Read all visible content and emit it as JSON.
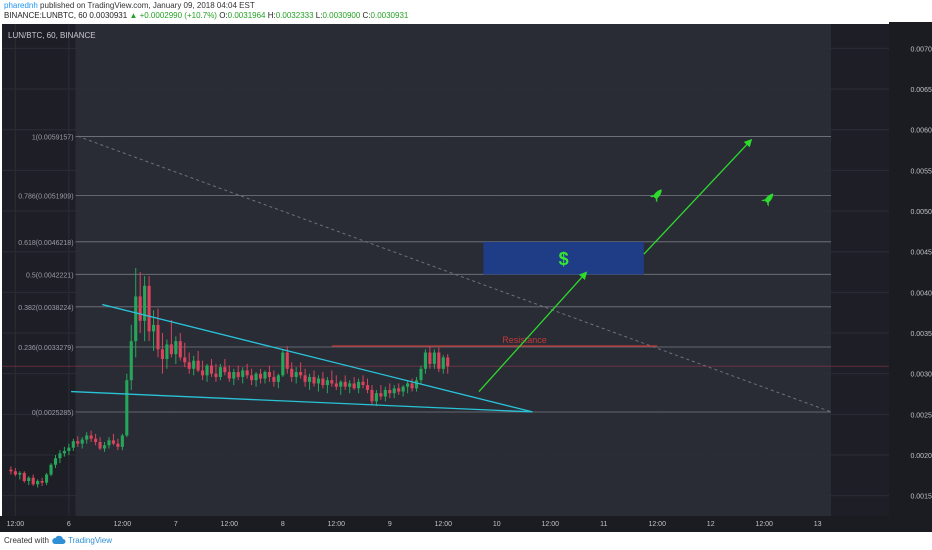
{
  "header": {
    "username": "pharednh",
    "published_text": "published on TradingView.com, January 09, 2018 04:04 EST",
    "symbol_line": "BINANCE:LUNBTC, 60",
    "last": "0.0030931",
    "change": "+0.0002990 (+10.7%)",
    "open_label": "O:",
    "open": "0.0031964",
    "high_label": "H:",
    "high": "0.0032333",
    "low_label": "L:",
    "low": "0.0030900",
    "close_label": "C:",
    "close": "0.0030931"
  },
  "footer": {
    "created_with": "Created with",
    "brand": "TradingView"
  },
  "colors": {
    "background": "#1e1f26",
    "shaded_region": "#2a2c35",
    "grid": "#2b2d36",
    "up_candle": "#26a65b",
    "down_candle": "#d9435d",
    "trendline": "#28c3d6",
    "arrow": "#2ddb2d",
    "resistance": "#c23838",
    "fib_line": "#8a8c96",
    "target_box": "#1e3f8f",
    "dollar": "#35e635",
    "rocket": "#2ddb2d"
  },
  "chart_data": {
    "type": "candlestick",
    "title": "LUN/BTC, 60, BINANCE",
    "x_ticks": [
      "12:00",
      "6",
      "12:00",
      "7",
      "12:00",
      "8",
      "12:00",
      "9",
      "12:00",
      "10",
      "12:00",
      "11",
      "12:00",
      "12",
      "12:00",
      "13"
    ],
    "x_tick_hours": [
      0,
      12,
      24,
      36,
      48,
      60,
      72,
      84,
      96,
      108,
      120,
      132,
      144,
      156,
      168,
      180
    ],
    "y_ticks": [
      "0.0070000",
      "0.0065000",
      "0.0060000",
      "0.0055000",
      "0.0050000",
      "0.0045000",
      "0.0040000",
      "0.0035000",
      "0.0030000",
      "0.0025000",
      "0.0020000",
      "0.0015000"
    ],
    "ylim": [
      0.00125,
      0.0073
    ],
    "xlim": [
      -3,
      196
    ],
    "last_price": 0.0030931,
    "fibonacci": [
      {
        "label": "1(0.0059157)",
        "price": 0.0059157
      },
      {
        "label": "0.786(0.0051909)",
        "price": 0.0051909
      },
      {
        "label": "0.618(0.0046218)",
        "price": 0.0046218
      },
      {
        "label": "0.5(0.0042221)",
        "price": 0.0042221
      },
      {
        "label": "0.382(0.0038224)",
        "price": 0.0038224
      },
      {
        "label": "0.236(0.0033279)",
        "price": 0.0033279
      },
      {
        "label": "0(0.0025285)",
        "price": 0.0025285
      }
    ],
    "fib_hours": [
      13.5,
      183
    ],
    "shaded_hours": [
      13.5,
      183
    ],
    "diagonal": {
      "from": [
        14,
        0.00592
      ],
      "to": [
        183,
        0.00253
      ]
    },
    "resistance": {
      "label": "Resistance",
      "price": 0.00334,
      "hours": [
        71,
        144
      ]
    },
    "trend_upper": {
      "from": [
        19.5,
        0.00385
      ],
      "to": [
        116,
        0.00253
      ]
    },
    "trend_lower": {
      "from": [
        12.5,
        0.00278
      ],
      "to": [
        116,
        0.00253
      ]
    },
    "arrow_1": {
      "from": [
        104,
        0.00278
      ],
      "to": [
        128,
        0.00424
      ]
    },
    "arrow_2": {
      "from": [
        141,
        0.00447
      ],
      "to": [
        165,
        0.00587
      ]
    },
    "target_box": {
      "label": "$",
      "hours": [
        105,
        141
      ],
      "prices": [
        0.00422,
        0.00462
      ]
    },
    "rockets": [
      {
        "hour": 144,
        "price": 0.0052
      },
      {
        "hour": 169,
        "price": 0.00515
      }
    ],
    "candles": [
      [
        -1,
        0.00182,
        0.00186,
        0.00176,
        0.0018
      ],
      [
        0,
        0.0018,
        0.00184,
        0.00174,
        0.00176
      ],
      [
        1,
        0.00176,
        0.0018,
        0.0017,
        0.00178
      ],
      [
        2,
        0.00178,
        0.0018,
        0.00166,
        0.00168
      ],
      [
        3,
        0.00168,
        0.00174,
        0.00163,
        0.00172
      ],
      [
        4,
        0.00172,
        0.00176,
        0.00162,
        0.00164
      ],
      [
        5,
        0.00164,
        0.0017,
        0.0016,
        0.00168
      ],
      [
        6,
        0.00168,
        0.00172,
        0.00162,
        0.00166
      ],
      [
        7,
        0.00166,
        0.00178,
        0.00163,
        0.00176
      ],
      [
        8,
        0.00176,
        0.0019,
        0.00174,
        0.00188
      ],
      [
        9,
        0.00188,
        0.002,
        0.00184,
        0.00196
      ],
      [
        10,
        0.00196,
        0.00206,
        0.0019,
        0.00202
      ],
      [
        11,
        0.00202,
        0.0021,
        0.00198,
        0.00205
      ],
      [
        12,
        0.00205,
        0.00214,
        0.002,
        0.00209
      ],
      [
        13,
        0.00209,
        0.0022,
        0.00205,
        0.00217
      ],
      [
        14,
        0.00217,
        0.00223,
        0.0021,
        0.00214
      ],
      [
        15,
        0.00214,
        0.00222,
        0.00208,
        0.00219
      ],
      [
        16,
        0.00219,
        0.00228,
        0.00214,
        0.00224
      ],
      [
        17,
        0.00224,
        0.0023,
        0.00216,
        0.0022
      ],
      [
        18,
        0.0022,
        0.00226,
        0.00212,
        0.00216
      ],
      [
        19,
        0.00216,
        0.00222,
        0.00206,
        0.00208
      ],
      [
        20,
        0.00208,
        0.00216,
        0.00204,
        0.00212
      ],
      [
        21,
        0.00212,
        0.00222,
        0.00208,
        0.00218
      ],
      [
        22,
        0.00218,
        0.00226,
        0.00212,
        0.00214
      ],
      [
        23,
        0.00214,
        0.0022,
        0.00206,
        0.0021
      ],
      [
        24,
        0.0021,
        0.00226,
        0.00206,
        0.00224
      ],
      [
        25,
        0.00224,
        0.003,
        0.00222,
        0.00292
      ],
      [
        26,
        0.00292,
        0.0036,
        0.0028,
        0.0034
      ],
      [
        27,
        0.0034,
        0.0043,
        0.0032,
        0.00395
      ],
      [
        28,
        0.00395,
        0.00425,
        0.0035,
        0.00365
      ],
      [
        29,
        0.00365,
        0.0042,
        0.0034,
        0.00408
      ],
      [
        30,
        0.00408,
        0.0042,
        0.0034,
        0.00352
      ],
      [
        31,
        0.00352,
        0.00378,
        0.00328,
        0.0036
      ],
      [
        32,
        0.0036,
        0.0038,
        0.0032,
        0.0033
      ],
      [
        33,
        0.0033,
        0.0035,
        0.003,
        0.00318
      ],
      [
        34,
        0.00318,
        0.00342,
        0.00306,
        0.00336
      ],
      [
        35,
        0.00336,
        0.00366,
        0.0032,
        0.00324
      ],
      [
        36,
        0.00324,
        0.00346,
        0.00312,
        0.0034
      ],
      [
        37,
        0.0034,
        0.0035,
        0.00316,
        0.0032
      ],
      [
        38,
        0.0032,
        0.00338,
        0.00308,
        0.00314
      ],
      [
        39,
        0.00314,
        0.00326,
        0.003,
        0.00306
      ],
      [
        40,
        0.00306,
        0.00322,
        0.00298,
        0.00316
      ],
      [
        41,
        0.00316,
        0.00328,
        0.00302,
        0.00304
      ],
      [
        42,
        0.00304,
        0.00316,
        0.00292,
        0.00298
      ],
      [
        43,
        0.00298,
        0.00312,
        0.0029,
        0.0031
      ],
      [
        44,
        0.0031,
        0.00318,
        0.00296,
        0.003
      ],
      [
        45,
        0.003,
        0.00312,
        0.0029,
        0.00296
      ],
      [
        46,
        0.00296,
        0.00312,
        0.00292,
        0.00308
      ],
      [
        47,
        0.00308,
        0.00318,
        0.00298,
        0.00302
      ],
      [
        48,
        0.00302,
        0.0031,
        0.0029,
        0.00294
      ],
      [
        49,
        0.00294,
        0.00306,
        0.00286,
        0.00302
      ],
      [
        50,
        0.00302,
        0.0031,
        0.00292,
        0.00296
      ],
      [
        51,
        0.00296,
        0.00308,
        0.00288,
        0.00304
      ],
      [
        52,
        0.00304,
        0.00312,
        0.00294,
        0.00298
      ],
      [
        53,
        0.00298,
        0.00306,
        0.00286,
        0.00292
      ],
      [
        54,
        0.00292,
        0.00302,
        0.00284,
        0.003
      ],
      [
        55,
        0.003,
        0.00306,
        0.00288,
        0.00294
      ],
      [
        56,
        0.00294,
        0.00304,
        0.00288,
        0.00302
      ],
      [
        57,
        0.00302,
        0.0031,
        0.0029,
        0.00296
      ],
      [
        58,
        0.00296,
        0.00304,
        0.00284,
        0.0029
      ],
      [
        59,
        0.0029,
        0.003,
        0.00282,
        0.00298
      ],
      [
        60,
        0.00298,
        0.0033,
        0.00296,
        0.00326
      ],
      [
        61,
        0.00326,
        0.00334,
        0.003,
        0.00306
      ],
      [
        62,
        0.00306,
        0.00314,
        0.0029,
        0.00296
      ],
      [
        63,
        0.00296,
        0.00308,
        0.00288,
        0.00302
      ],
      [
        64,
        0.00302,
        0.00314,
        0.00294,
        0.00298
      ],
      [
        65,
        0.00298,
        0.00306,
        0.00284,
        0.0029
      ],
      [
        66,
        0.0029,
        0.003,
        0.0028,
        0.00296
      ],
      [
        67,
        0.00296,
        0.00304,
        0.00284,
        0.00288
      ],
      [
        68,
        0.00288,
        0.00298,
        0.00278,
        0.00294
      ],
      [
        69,
        0.00294,
        0.00302,
        0.00282,
        0.00286
      ],
      [
        70,
        0.00286,
        0.00296,
        0.00276,
        0.00292
      ],
      [
        71,
        0.00292,
        0.00304,
        0.00284,
        0.00288
      ],
      [
        72,
        0.00288,
        0.00298,
        0.0028,
        0.00284
      ],
      [
        73,
        0.00284,
        0.00292,
        0.00274,
        0.0029
      ],
      [
        74,
        0.0029,
        0.00298,
        0.0028,
        0.00284
      ],
      [
        75,
        0.00284,
        0.00292,
        0.00276,
        0.00288
      ],
      [
        76,
        0.00288,
        0.00296,
        0.0028,
        0.00282
      ],
      [
        77,
        0.00282,
        0.00294,
        0.00276,
        0.0029
      ],
      [
        78,
        0.0029,
        0.00298,
        0.00282,
        0.00286
      ],
      [
        79,
        0.00286,
        0.00294,
        0.00276,
        0.0028
      ],
      [
        80,
        0.0028,
        0.00286,
        0.00262,
        0.00266
      ],
      [
        81,
        0.00266,
        0.0028,
        0.0026,
        0.00276
      ],
      [
        82,
        0.00276,
        0.00286,
        0.00268,
        0.00272
      ],
      [
        83,
        0.00272,
        0.00284,
        0.00266,
        0.0028
      ],
      [
        84,
        0.0028,
        0.00288,
        0.0027,
        0.00276
      ],
      [
        85,
        0.00276,
        0.00286,
        0.0027,
        0.00282
      ],
      [
        86,
        0.00282,
        0.00288,
        0.00274,
        0.00278
      ],
      [
        87,
        0.00278,
        0.00286,
        0.00272,
        0.00284
      ],
      [
        88,
        0.00284,
        0.00292,
        0.00276,
        0.00288
      ],
      [
        89,
        0.00288,
        0.00294,
        0.00278,
        0.00282
      ],
      [
        90,
        0.00282,
        0.00296,
        0.00278,
        0.00292
      ],
      [
        91,
        0.00292,
        0.0031,
        0.00288,
        0.00306
      ],
      [
        92,
        0.00306,
        0.0033,
        0.003,
        0.00326
      ],
      [
        93,
        0.00326,
        0.00334,
        0.00306,
        0.00312
      ],
      [
        94,
        0.00312,
        0.0033,
        0.00306,
        0.00326
      ],
      [
        95,
        0.00326,
        0.00332,
        0.00302,
        0.00306
      ],
      [
        96,
        0.00306,
        0.00323,
        0.003,
        0.0032
      ],
      [
        97,
        0.0032,
        0.00324,
        0.003,
        0.00309
      ]
    ]
  }
}
